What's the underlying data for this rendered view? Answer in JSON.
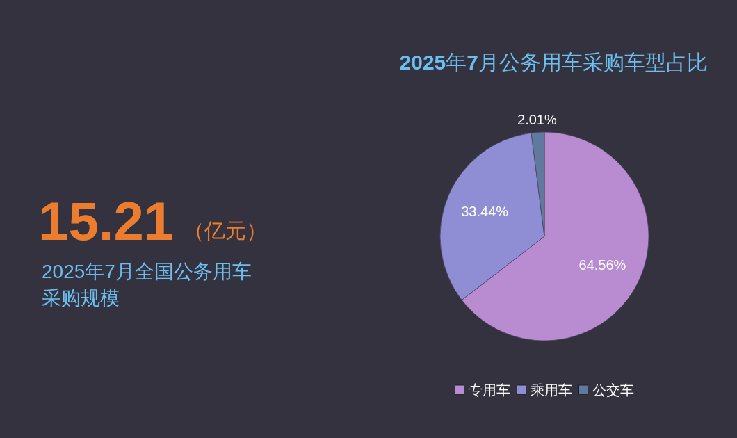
{
  "chart_data": [
    {
      "type": "other",
      "title": "2025年7月全国公务用车采购规模",
      "annotations": [
        "15.21",
        "（亿元）"
      ]
    },
    {
      "type": "pie",
      "title": "**2025**年**7**月公务用车采购车型占比",
      "categories": [
        "专用车",
        "乘用车",
        "公交车"
      ],
      "values": [
        64.56,
        33.44,
        2.01
      ],
      "colors": [
        "#b98bd1",
        "#8f8ed4",
        "#5f7a9e"
      ],
      "value_labels": [
        "64.56%",
        "33.44%",
        "2.01%"
      ],
      "legend": "bottom"
    }
  ]
}
